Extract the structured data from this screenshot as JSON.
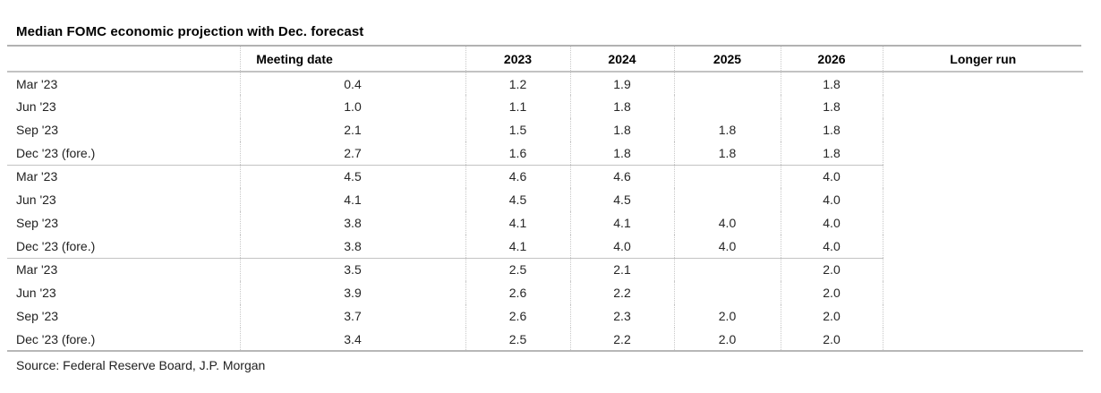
{
  "title": "Median FOMC economic projection with Dec. forecast",
  "source": "Source: Federal Reserve Board, J.P. Morgan",
  "colors": {
    "background": "#ffffff",
    "text": "#262626",
    "heading_text": "#000000",
    "rule_gray": "#b7b7b7",
    "dotted_gray": "#c8c8c8"
  },
  "chart_data": {
    "type": "table",
    "title": "Median FOMC economic projection with Dec. forecast",
    "columns": [
      "",
      "Meeting date",
      "2023",
      "2024",
      "2025",
      "2026",
      "Longer run"
    ],
    "row_groups": [
      {
        "rows": [
          {
            "label": "Mar '23",
            "values": [
              "0.4",
              "1.2",
              "1.9",
              "",
              "1.8",
              ""
            ]
          },
          {
            "label": "Jun '23",
            "values": [
              "1.0",
              "1.1",
              "1.8",
              "",
              "1.8",
              ""
            ]
          },
          {
            "label": "Sep '23",
            "values": [
              "2.1",
              "1.5",
              "1.8",
              "1.8",
              "1.8",
              ""
            ]
          },
          {
            "label": "Dec '23 (fore.)",
            "values": [
              "2.7",
              "1.6",
              "1.8",
              "1.8",
              "1.8",
              ""
            ]
          }
        ]
      },
      {
        "rows": [
          {
            "label": "Mar '23",
            "values": [
              "4.5",
              "4.6",
              "4.6",
              "",
              "4.0",
              ""
            ]
          },
          {
            "label": "Jun '23",
            "values": [
              "4.1",
              "4.5",
              "4.5",
              "",
              "4.0",
              ""
            ]
          },
          {
            "label": "Sep '23",
            "values": [
              "3.8",
              "4.1",
              "4.1",
              "4.0",
              "4.0",
              ""
            ]
          },
          {
            "label": "Dec '23 (fore.)",
            "values": [
              "3.8",
              "4.1",
              "4.0",
              "4.0",
              "4.0",
              ""
            ]
          }
        ]
      },
      {
        "rows": [
          {
            "label": "Mar '23",
            "values": [
              "3.5",
              "2.5",
              "2.1",
              "",
              "2.0",
              ""
            ]
          },
          {
            "label": "Jun '23",
            "values": [
              "3.9",
              "2.6",
              "2.2",
              "",
              "2.0",
              ""
            ]
          },
          {
            "label": "Sep '23",
            "values": [
              "3.7",
              "2.6",
              "2.3",
              "2.0",
              "2.0",
              ""
            ]
          },
          {
            "label": "Dec '23 (fore.)",
            "values": [
              "3.4",
              "2.5",
              "2.2",
              "2.0",
              "2.0",
              ""
            ]
          }
        ]
      }
    ],
    "source": "Source: Federal Reserve Board, J.P. Morgan",
    "layout": {
      "grid": "dotted column separators, solid gray group separators",
      "legend": "none"
    }
  }
}
